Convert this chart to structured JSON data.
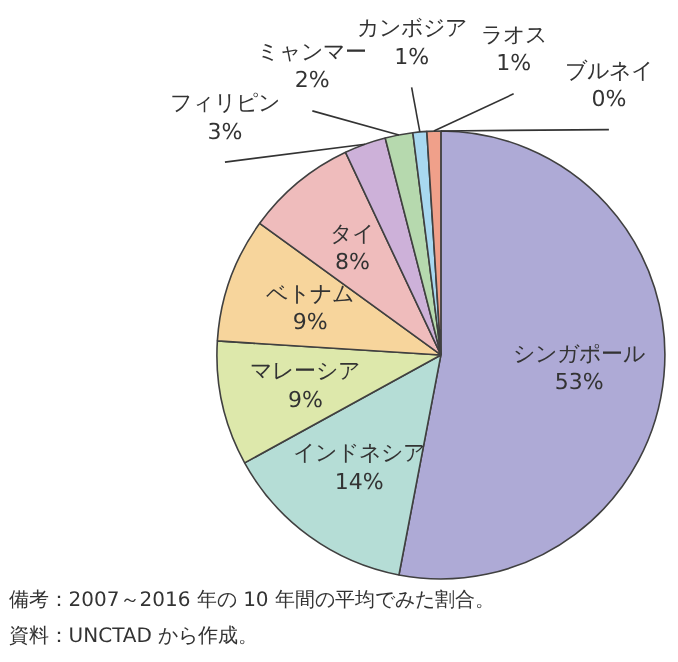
{
  "chart_data": {
    "type": "pie",
    "categories": [
      "シンガポール",
      "インドネシア",
      "マレーシア",
      "ベトナム",
      "タイ",
      "フィリピン",
      "ミャンマー",
      "カンボジア",
      "ラオス",
      "ブルネイ"
    ],
    "values": [
      53,
      14,
      9,
      9,
      8,
      3,
      2,
      1,
      1,
      0
    ],
    "value_labels": [
      "53%",
      "14%",
      "9%",
      "9%",
      "8%",
      "3%",
      "2%",
      "1%",
      "1%",
      "0%"
    ],
    "colors": [
      "#aeaad6",
      "#b5ddd6",
      "#dde8ab",
      "#f7d59c",
      "#efbcbc",
      "#cdb1d9",
      "#b6d9ae",
      "#a8d8f0",
      "#f0a08a",
      "#f5b770"
    ],
    "annotations": [
      "備考：2007～2016 年の 10 年間の平均でみた割合。",
      "資料：UNCTAD から作成。"
    ]
  }
}
